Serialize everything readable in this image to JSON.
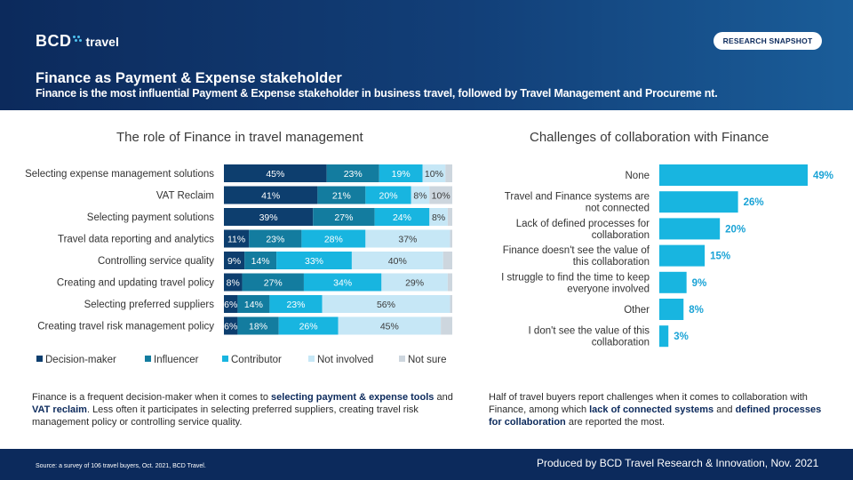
{
  "header": {
    "logo_mark": "BCD",
    "logo_text": "travel",
    "badge": "RESEARCH SNAPSHOT",
    "title": "Finance as Payment & Expense stakeholder",
    "subtitle": "Finance is the most influential Payment & Expense stakeholder in business travel, followed by Travel Management and Procureme nt."
  },
  "left_section": {
    "title": "The role of Finance in travel management",
    "paragraph_parts": [
      {
        "text": "Finance is a frequent decision-maker when it comes to ",
        "bold": false
      },
      {
        "text": "selecting payment & expense tools",
        "bold": true
      },
      {
        "text": " and ",
        "bold": false
      },
      {
        "text": "VAT reclaim",
        "bold": true
      },
      {
        "text": ". Less often it participates in selecting preferred suppliers, creating travel risk management policy or controlling service quality.",
        "bold": false
      }
    ]
  },
  "right_section": {
    "title": "Challenges of collaboration with Finance",
    "paragraph_parts": [
      {
        "text": "Half of travel buyers report challenges when it comes to collaboration with Finance, among which ",
        "bold": false
      },
      {
        "text": "lack of connected systems",
        "bold": true
      },
      {
        "text": " and ",
        "bold": false
      },
      {
        "text": "defined processes for collaboration",
        "bold": true
      },
      {
        "text": "  are reported the most.",
        "bold": false
      }
    ]
  },
  "footer": {
    "source": "Source: a survey of 106 travel buyers, Oct. 2021, BCD Travel.",
    "produced": "Produced by BCD Travel Research & Innovation, Nov. 2021"
  },
  "colors": {
    "decision_maker": "#0d3e6e",
    "influencer": "#137c9f",
    "contributor": "#18b5e0",
    "not_involved": "#c6e7f6",
    "not_sure": "#cdd6de",
    "bar_right": "#18b5e0",
    "label_right": "#1aa3d6"
  },
  "chart_data": [
    {
      "type": "bar",
      "orientation": "horizontal-stacked-100",
      "title": "The role of Finance in travel management",
      "categories": [
        "Selecting expense management solutions",
        "VAT Reclaim",
        "Selecting payment solutions",
        "Travel data reporting and analytics",
        "Controlling service quality",
        "Creating and updating travel policy",
        "Selecting preferred suppliers",
        "Creating travel risk management policy"
      ],
      "series": [
        {
          "name": "Decision-maker",
          "values": [
            45,
            41,
            39,
            11,
            9,
            8,
            6,
            6
          ]
        },
        {
          "name": "Influencer",
          "values": [
            23,
            21,
            27,
            23,
            14,
            27,
            14,
            18
          ]
        },
        {
          "name": "Contributor",
          "values": [
            19,
            20,
            24,
            28,
            33,
            34,
            23,
            26
          ]
        },
        {
          "name": "Not involved",
          "values": [
            10,
            8,
            8,
            37,
            40,
            29,
            56,
            45
          ]
        },
        {
          "name": "Not sure",
          "values": [
            3,
            10,
            2,
            1,
            4,
            2,
            1,
            5
          ]
        }
      ],
      "labels": [
        [
          "45%",
          "23%",
          "19%",
          "10%",
          ""
        ],
        [
          "41%",
          "21%",
          "20%",
          "8%",
          "10%"
        ],
        [
          "39%",
          "27%",
          "24%",
          "8%",
          ""
        ],
        [
          "11%",
          "23%",
          "28%",
          "37%",
          ""
        ],
        [
          "9%",
          "14%",
          "33%",
          "40%",
          ""
        ],
        [
          "8%",
          "27%",
          "34%",
          "29%",
          ""
        ],
        [
          "6%",
          "14%",
          "23%",
          "56%",
          ""
        ],
        [
          "6%",
          "18%",
          "26%",
          "45%",
          ""
        ]
      ],
      "xlim": [
        0,
        100
      ],
      "legend": "bottom"
    },
    {
      "type": "bar",
      "orientation": "horizontal",
      "title": "Challenges of collaboration with Finance",
      "categories": [
        [
          "None"
        ],
        [
          "Travel and Finance systems are",
          "not connected"
        ],
        [
          "Lack of defined processes for",
          "collaboration"
        ],
        [
          "Finance doesn't see the value of",
          "this collaboration"
        ],
        [
          "I struggle to find the time to keep",
          "everyone involved"
        ],
        [
          "Other"
        ],
        [
          "I don't see the value of this",
          "collaboration"
        ]
      ],
      "values": [
        49,
        26,
        20,
        15,
        9,
        8,
        3
      ],
      "value_labels": [
        "49%",
        "26%",
        "20%",
        "15%",
        "9%",
        "8%",
        "3%"
      ],
      "xlim": [
        0,
        49
      ]
    }
  ]
}
